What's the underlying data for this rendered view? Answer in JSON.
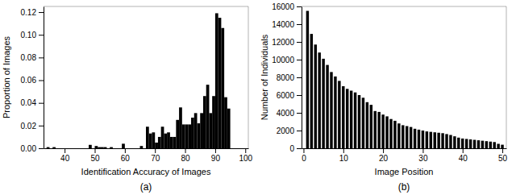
{
  "chart_data": [
    {
      "type": "histogram",
      "title": "(a)",
      "xlabel": "Identification Accuracy of Images",
      "ylabel": "Proportion of Images",
      "bins": [
        34,
        35,
        36,
        37,
        38,
        39,
        40,
        41,
        42,
        43,
        44,
        45,
        46,
        47,
        48,
        49,
        50,
        51,
        52,
        53,
        54,
        55,
        56,
        57,
        58,
        59,
        60,
        61,
        62,
        63,
        64,
        65,
        66,
        67,
        68,
        69,
        70,
        71,
        72,
        73,
        74,
        75,
        76,
        77,
        78,
        79,
        80,
        81,
        82,
        83,
        84,
        85,
        86,
        87,
        88,
        89,
        90,
        91,
        92,
        93,
        94,
        95
      ],
      "values": [
        0.001,
        0,
        0.001,
        0,
        0,
        0,
        0,
        0,
        0,
        0,
        0,
        0,
        0,
        0,
        0.003,
        0,
        0.002,
        0.001,
        0.001,
        0.001,
        0,
        0.001,
        0,
        0,
        0,
        0.004,
        0,
        0,
        0,
        0,
        0,
        0.002,
        0,
        0.019,
        0.013,
        0.014,
        0.005,
        0.01,
        0.019,
        0.013,
        0.014,
        0.01,
        0.01,
        0.025,
        0.036,
        0.021,
        0.021,
        0.021,
        0.027,
        0.031,
        0.022,
        0.031,
        0.046,
        0.056,
        0.031,
        0.046,
        0.119,
        0.115,
        0.106,
        0.045,
        0.035
      ],
      "color": "#000000",
      "xlim": [
        33,
        101
      ],
      "ylim": [
        0,
        0.125
      ],
      "xticks": [
        40,
        50,
        60,
        70,
        80,
        90,
        100
      ],
      "yticks": [
        {
          "value": 0,
          "label": "0.00"
        },
        0.02,
        0.04,
        0.06,
        0.08,
        {
          "value": 0.1,
          "label": "0.10"
        },
        0.12
      ]
    },
    {
      "type": "bar",
      "title": "(b)",
      "xlabel": "Image Position",
      "ylabel": "Number of Individuals",
      "x": [
        1,
        2,
        3,
        4,
        5,
        6,
        7,
        8,
        9,
        10,
        11,
        12,
        13,
        14,
        15,
        16,
        17,
        18,
        19,
        20,
        21,
        22,
        23,
        24,
        25,
        26,
        27,
        28,
        29,
        30,
        31,
        32,
        33,
        34,
        35,
        36,
        37,
        38,
        39,
        40,
        41,
        42,
        43,
        44,
        45,
        46,
        47,
        48,
        49,
        50
      ],
      "values": [
        15500,
        12900,
        11700,
        10800,
        10100,
        9400,
        8600,
        8100,
        7600,
        7000,
        6700,
        6500,
        6300,
        6000,
        5700,
        5200,
        4900,
        4200,
        4100,
        3800,
        3600,
        3300,
        3100,
        2800,
        2600,
        2500,
        2400,
        2200,
        2100,
        2000,
        1900,
        1850,
        1800,
        1750,
        1700,
        1600,
        1500,
        1350,
        1200,
        1100,
        1050,
        1000,
        950,
        900,
        850,
        800,
        750,
        700,
        500,
        400
      ],
      "color": "#000000",
      "xlim": [
        -0.5,
        51
      ],
      "ylim": [
        0,
        16000
      ],
      "xticks": [
        0,
        10,
        20,
        30,
        40,
        50
      ],
      "yticks": [
        0,
        2000,
        4000,
        6000,
        8000,
        10000,
        12000,
        14000,
        16000
      ]
    }
  ]
}
